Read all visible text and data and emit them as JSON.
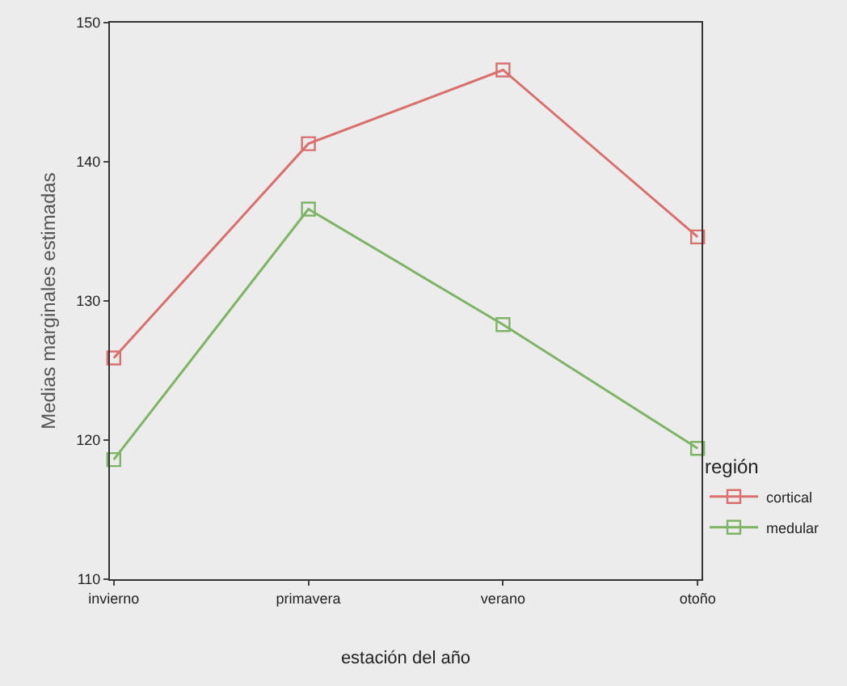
{
  "chart_data": {
    "type": "line",
    "xlabel": "estación del año",
    "ylabel": "Medias marginales estimadas",
    "legend_title": "región",
    "categories": [
      "invierno",
      "primavera",
      "verano",
      "otoño"
    ],
    "series": [
      {
        "name": "cortical",
        "color": "#d9706e",
        "values": [
          125.9,
          141.3,
          146.6,
          134.6
        ]
      },
      {
        "name": "medular",
        "color": "#7fb466",
        "values": [
          118.6,
          136.6,
          128.3,
          119.4
        ]
      }
    ],
    "ylim": [
      110,
      150
    ],
    "yticks": [
      110,
      120,
      130,
      140,
      150
    ],
    "grid": false,
    "legend": "bottom right",
    "marker": "square",
    "line_style": "solid"
  }
}
